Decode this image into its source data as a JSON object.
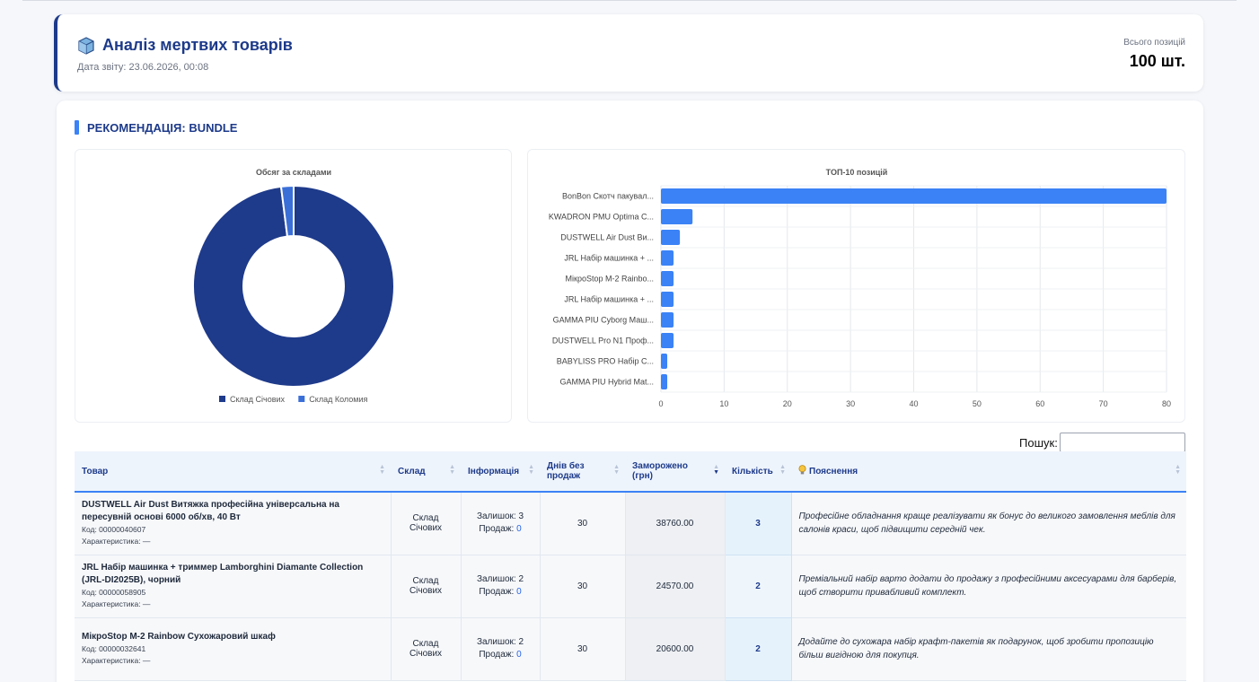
{
  "header": {
    "title": "Аналіз мертвих товарів",
    "date": "Дата звіту: 23.06.2026, 00:08",
    "total_label": "Всього позицій",
    "total_value": "100 шт."
  },
  "recommendation": {
    "title": "РЕКОМЕНДАЦІЯ: BUNDLE"
  },
  "search": {
    "label": "Пошук:",
    "value": "",
    "placeholder": ""
  },
  "colors": {
    "navy": "#1d3a8a",
    "blue": "#3b82f6",
    "donut_main": "#1e3a8a",
    "donut_second": "#3b6fd8"
  },
  "chart_data": [
    {
      "type": "pie",
      "title": "Обсяг за складами",
      "donut": true,
      "legend": "bottom",
      "categories": [
        "Склад Січових",
        "Склад Коломия"
      ],
      "values": [
        98,
        2
      ]
    },
    {
      "type": "bar",
      "orientation": "horizontal",
      "title": "ТОП-10 позицій",
      "categories": [
        "BonBon Скотч пакувал...",
        "KWADRON PMU Optima C...",
        "DUSTWELL Air Dust Ви...",
        "JRL Набір машинка + ...",
        "МікроStop M-2 Rainbo...",
        "JRL Набір машинка + ...",
        "GAMMA PIU Cyborg Маш...",
        "DUSTWELL Pro N1 Проф...",
        "BABYLISS PRO Набір С...",
        "GAMMA PIU Hybrid Mat..."
      ],
      "values": [
        80,
        5,
        3,
        2,
        2,
        2,
        2,
        2,
        1,
        1
      ],
      "xlim": [
        0,
        80
      ],
      "xticks": [
        0,
        10,
        20,
        30,
        40,
        50,
        60,
        70,
        80
      ],
      "grid": true
    }
  ],
  "table": {
    "columns": [
      "Товар",
      "Склад",
      "Інформація",
      "Днів без продаж",
      "Заморожено (грн)",
      "Кількість",
      "Пояснення"
    ],
    "rows": [
      {
        "name": "DUSTWELL Air Dust Витяжка професійна універсальна на пересувній основі 6000 об/хв, 40 Вт",
        "code": "Код: 00000040607",
        "char": "Характеристика: —",
        "warehouse": "Склад Січових",
        "stock": "Залишок: 3",
        "sales_label": "Продаж:",
        "sales": "0",
        "days": "30",
        "frozen": "38760.00",
        "qty": "3",
        "expl": "Професійне обладнання краще реалізувати як бонус до великого замовлення меблів для салонів краси, щоб підвищити середній чек."
      },
      {
        "name": "JRL Набір машинка + триммер Lamborghini Diamante Collection (JRL-DI2025B), чорний",
        "code": "Код: 00000058905",
        "char": "Характеристика: —",
        "warehouse": "Склад Січових",
        "stock": "Залишок: 2",
        "sales_label": "Продаж:",
        "sales": "0",
        "days": "30",
        "frozen": "24570.00",
        "qty": "2",
        "expl": "Преміальний набір варто додати до продажу з професійними аксесуарами для барберів, щоб створити привабливий комплект."
      },
      {
        "name": "МікроStop M-2 Rainbow Сухожаровий шкаф",
        "code": "Код: 00000032641",
        "char": "Характеристика: —",
        "warehouse": "Склад Січових",
        "stock": "Залишок: 2",
        "sales_label": "Продаж:",
        "sales": "0",
        "days": "30",
        "frozen": "20600.00",
        "qty": "2",
        "expl": "Додайте до сухожара набір крафт-пакетів як подарунок, щоб зробити пропозицію більш вигідною для покупця."
      }
    ]
  }
}
